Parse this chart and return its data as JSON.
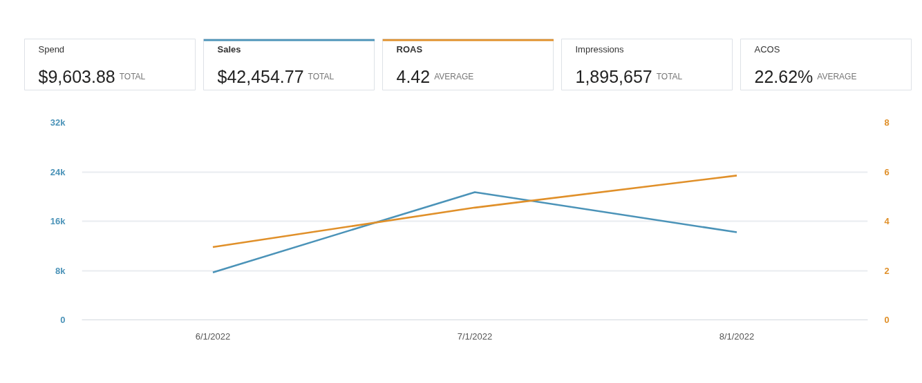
{
  "chart_data": [
    {
      "type": "other",
      "title": "Spend",
      "annotations": [
        "$9,603.88",
        "TOTAL"
      ]
    },
    {
      "type": "other",
      "title": "Sales",
      "annotations": [
        "$42,454.77",
        "TOTAL"
      ],
      "color": "#4b93b8"
    },
    {
      "type": "other",
      "title": "ROAS",
      "annotations": [
        "4.42",
        "AVERAGE"
      ],
      "color": "#e0902a"
    },
    {
      "type": "other",
      "title": "Impressions",
      "annotations": [
        "1,895,657",
        "TOTAL"
      ]
    },
    {
      "type": "other",
      "title": "ACOS",
      "annotations": [
        "22.62%",
        "AVERAGE"
      ]
    },
    {
      "type": "line",
      "categories": [
        "6/1/2022",
        "7/1/2022",
        "8/1/2022"
      ],
      "series": [
        {
          "color": "#4b93b8",
          "values": [
            7700,
            20700,
            14200
          ]
        },
        {
          "color": "#e0902a",
          "axis": "y2",
          "values": [
            2.95,
            4.55,
            5.85
          ]
        }
      ],
      "ylim": [
        0,
        32000
      ],
      "yticks": [
        0,
        {
          "value": 8000,
          "label": "8k"
        },
        {
          "value": 16000,
          "label": "16k"
        },
        {
          "value": 24000,
          "label": "24k"
        },
        {
          "value": 32000,
          "label": "32k"
        }
      ],
      "y2lim": [
        0,
        8
      ],
      "y2ticks": [
        0,
        2,
        4,
        6,
        8
      ],
      "grid": "y"
    }
  ]
}
